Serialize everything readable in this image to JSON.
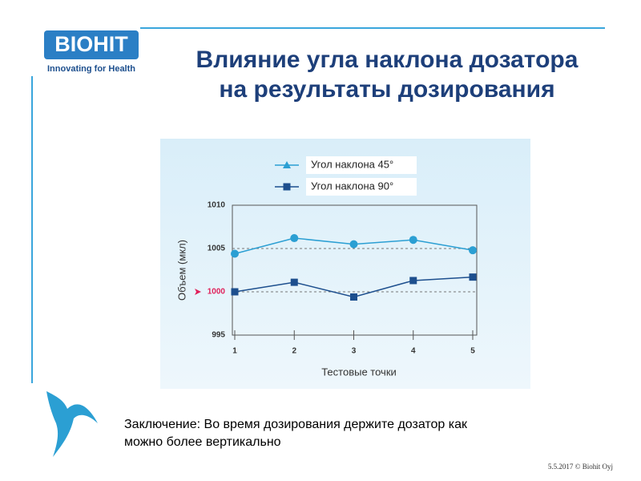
{
  "logo": {
    "name": "BIOHIT",
    "tagline": "Innovating for Health"
  },
  "title": [
    "Влияние угла наклона дозатора",
    "на результаты дозирования"
  ],
  "conclusion": [
    "Заключение: Во время дозирования держите дозатор как",
    "можно более вертикально"
  ],
  "footer": "5.5.2017 © Biohit Oyj",
  "chart_data": {
    "type": "line",
    "categories": [
      "1",
      "2",
      "3",
      "4",
      "5"
    ],
    "series": [
      {
        "name": "Угол наклона  45°",
        "color": "#2b9fd3",
        "marker": "circle",
        "legend_marker": "triangle",
        "values": [
          1004.4,
          1006.2,
          1005.5,
          1006.0,
          1004.8
        ]
      },
      {
        "name": "Угол наклона  90°",
        "color": "#1d4f8e",
        "marker": "square",
        "legend_marker": "square",
        "values": [
          1000.0,
          1001.1,
          999.4,
          1001.3,
          1001.7
        ]
      }
    ],
    "ylim": [
      995,
      1010
    ],
    "yticks": [
      995,
      1000,
      1005,
      1010
    ],
    "highlight_ytick": 1000,
    "ylabel": "Объем (мкл)",
    "xlabel": "Тестовые точки",
    "grid": "dashed"
  }
}
